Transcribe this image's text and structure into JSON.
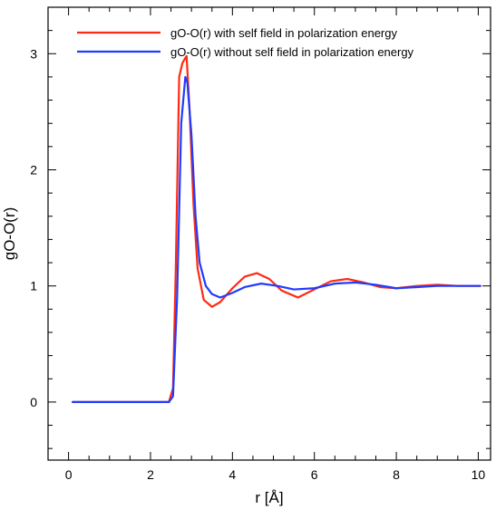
{
  "chart_data": {
    "type": "line",
    "title": "",
    "xlabel": "r [Å]",
    "ylabel": "gO-O(r)",
    "xlim": [
      -0.5,
      10.3
    ],
    "ylim": [
      -0.5,
      3.4
    ],
    "xticks": [
      0,
      2,
      4,
      6,
      8,
      10
    ],
    "xtick_labels": [
      "0",
      "2",
      "4",
      "6",
      "8",
      "10"
    ],
    "yticks": [
      0,
      1,
      2,
      3
    ],
    "ytick_labels": [
      "0",
      "1",
      "2",
      "3"
    ],
    "grid": false,
    "legend_position": "top-right",
    "series": [
      {
        "name": "gO-O(r) with self field in polarization energy",
        "color": "#ff2a12",
        "x": [
          0.1,
          2.45,
          2.55,
          2.62,
          2.7,
          2.78,
          2.88,
          2.95,
          3.05,
          3.15,
          3.3,
          3.5,
          3.7,
          4.0,
          4.3,
          4.6,
          4.9,
          5.2,
          5.6,
          6.0,
          6.4,
          6.8,
          7.2,
          7.6,
          8.0,
          8.5,
          9.0,
          9.5,
          10.05
        ],
        "y": [
          0.0,
          0.0,
          0.12,
          1.2,
          2.8,
          2.92,
          2.98,
          2.55,
          1.7,
          1.15,
          0.88,
          0.82,
          0.86,
          0.98,
          1.08,
          1.11,
          1.06,
          0.96,
          0.9,
          0.97,
          1.04,
          1.06,
          1.03,
          0.99,
          0.98,
          1.0,
          1.01,
          1.0,
          1.0
        ]
      },
      {
        "name": "gO-O(r) without self field in polarization energy",
        "color": "#1f3cff",
        "x": [
          0.1,
          2.45,
          2.55,
          2.65,
          2.75,
          2.85,
          2.9,
          3.0,
          3.1,
          3.2,
          3.35,
          3.5,
          3.7,
          4.0,
          4.3,
          4.7,
          5.1,
          5.5,
          6.0,
          6.5,
          7.0,
          7.5,
          8.0,
          8.5,
          9.0,
          9.5,
          10.05
        ],
        "y": [
          0.0,
          0.0,
          0.05,
          0.9,
          2.4,
          2.8,
          2.75,
          2.3,
          1.6,
          1.2,
          1.0,
          0.93,
          0.9,
          0.94,
          0.99,
          1.02,
          1.0,
          0.97,
          0.98,
          1.02,
          1.03,
          1.01,
          0.98,
          0.99,
          1.0,
          1.0,
          1.0
        ]
      }
    ]
  }
}
